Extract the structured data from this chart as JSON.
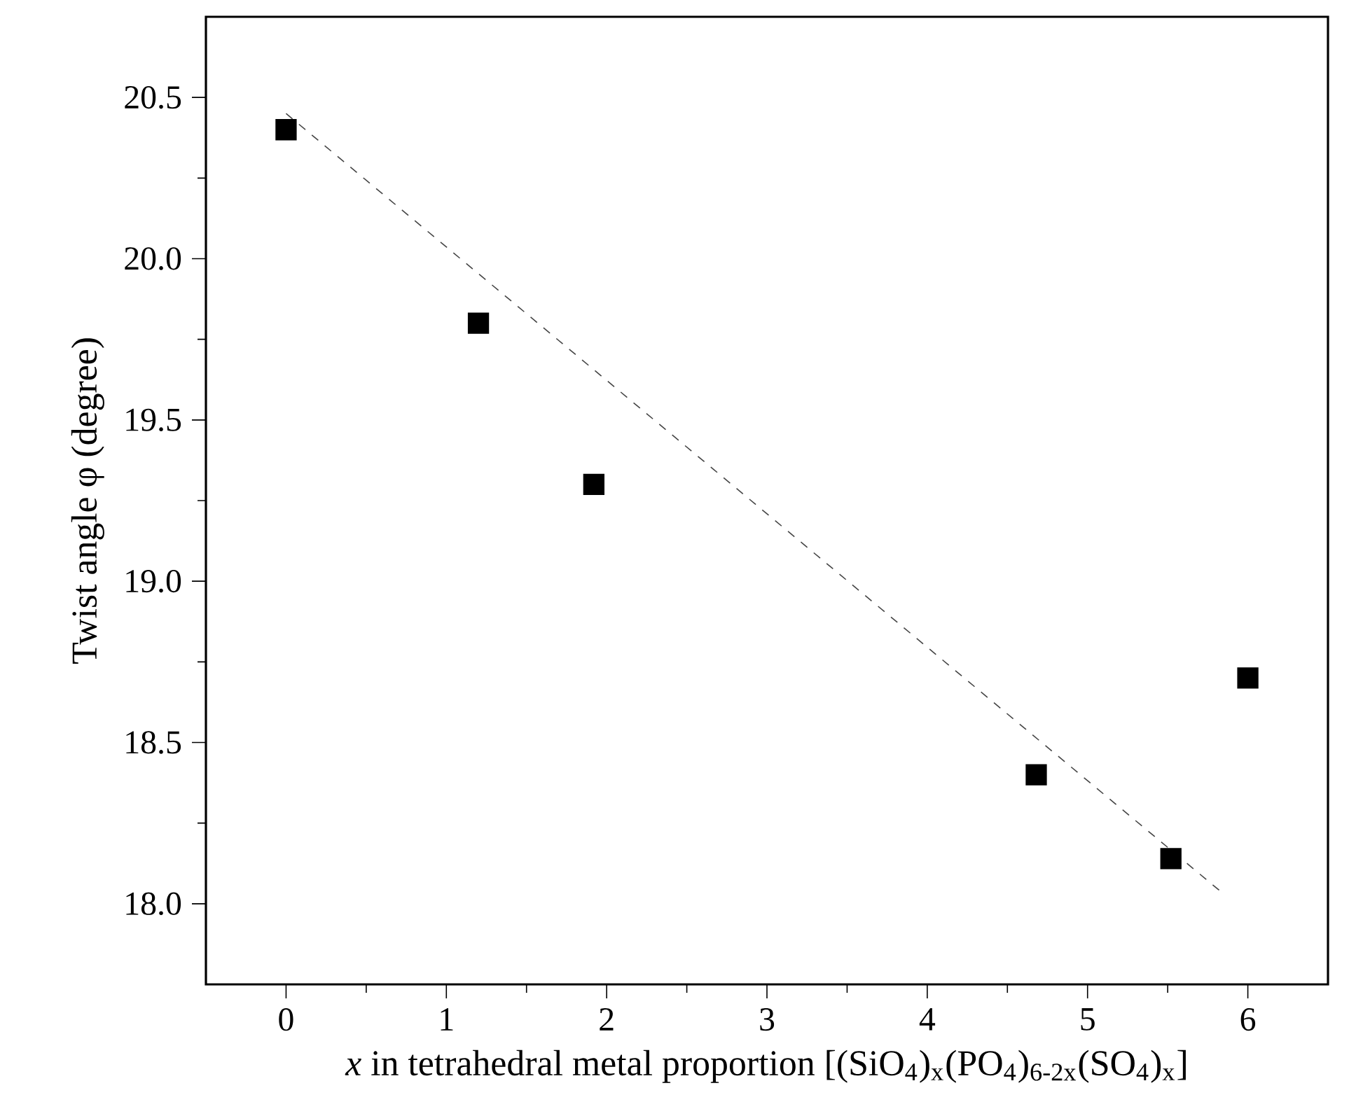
{
  "chart_data": {
    "type": "scatter",
    "xlabel": "*x* in tetrahedral metal proportion [(SiO$_{4}$)$_{x}$(PO$_{4}$)$_{6-2x}$(SO$_{4}$)$_{x}$]",
    "ylabel": "Twist angle φ (degree)",
    "series": [
      {
        "color": "#000000",
        "marker": "square",
        "x": [
          0,
          1.2,
          1.92,
          4.68,
          5.52,
          6.0
        ],
        "values": [
          20.4,
          19.8,
          19.3,
          18.4,
          18.14,
          18.7
        ]
      },
      {
        "type": "line",
        "color": "#444444",
        "line_style": "dashed",
        "x": [
          0,
          5.85
        ],
        "values": [
          20.45,
          18.03
        ]
      }
    ],
    "xlim": [
      -0.5,
      6.5
    ],
    "ylim": [
      17.75,
      20.75
    ],
    "xticks": [
      0,
      1,
      2,
      3,
      4,
      5,
      6
    ],
    "yticks": [
      {
        "value": 18,
        "label": "18.0"
      },
      18.5,
      {
        "value": 19,
        "label": "19.0"
      },
      19.5,
      {
        "value": 20,
        "label": "20.0"
      },
      20.5
    ]
  }
}
